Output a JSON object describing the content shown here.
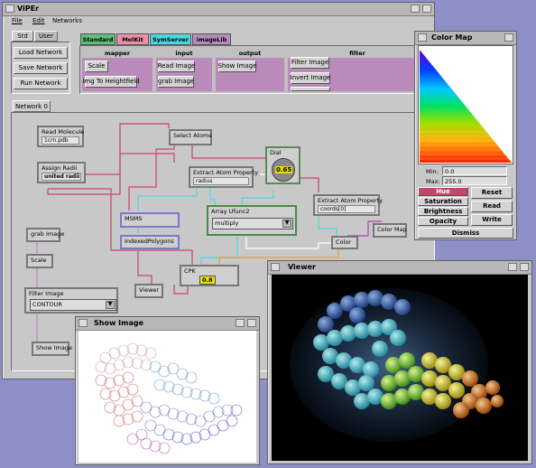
{
  "app": {
    "title": "ViPEr",
    "menu": [
      "File",
      "Edit",
      "Networks"
    ],
    "tabs": [
      "Std",
      "User"
    ],
    "buttons": [
      "Load Network",
      "Save Network",
      "Run Network"
    ],
    "libraries": [
      "Standard",
      "MolKit",
      "SymServer",
      "imageLib"
    ],
    "categories": [
      "mapper",
      "input",
      "output",
      "filter"
    ],
    "category_buttons": {
      "mapper": [
        "Scale",
        "Img To Heightfield"
      ],
      "input": [
        "Read Image",
        "grab Image"
      ],
      "output": [
        "Show Image"
      ],
      "filter": [
        "Filter Image",
        "Invert Image"
      ]
    },
    "network_tab": "Network 0"
  },
  "network": {
    "read_molecule": {
      "label": "Read Molecule",
      "value": "1crn.pdb"
    },
    "assign_radii": {
      "label": "Assign Radii",
      "value": "united radii"
    },
    "select_atoms": {
      "label": "Select Atoms"
    },
    "extract_radius": {
      "label": "Extract Atom Property",
      "value": "radius"
    },
    "dial": {
      "label": "Dial",
      "value": "0.65"
    },
    "extract_coords": {
      "label": "Extract Atom Property",
      "value": "coords[0]"
    },
    "msms": {
      "label": "MSMS"
    },
    "array_ufunc": {
      "label": "Array Ufunc2",
      "value": "multiply"
    },
    "indexed_polygons": {
      "label": "IndexedPolygons"
    },
    "color": {
      "label": "Color"
    },
    "color_map": {
      "label": "Color Map"
    },
    "grab_image": {
      "label": "grab Image"
    },
    "scale": {
      "label": "Scale"
    },
    "filter_image": {
      "label": "Filter Image",
      "value": "CONTOUR"
    },
    "viewer": {
      "label": "Viewer"
    },
    "cpk": {
      "label": "CPK",
      "value": "0.8"
    },
    "show_image": {
      "label": "Show Image"
    }
  },
  "colormap": {
    "title": "Color Map",
    "min_label": "Min:",
    "min_value": "0.0",
    "max_label": "Max:",
    "max_value": "255.0",
    "props": [
      "Hue",
      "Saturation",
      "Brightness",
      "Opacity"
    ],
    "actions": [
      "Reset",
      "Read",
      "Write"
    ],
    "dismiss": "Dismiss"
  },
  "show_image_window": {
    "title": "Show Image"
  },
  "viewer_window": {
    "title": "Viewer"
  },
  "colors": {
    "desktop": "#8f8fc8",
    "lib_standard": "#5fbf7a",
    "lib_molkit": "#e890a8",
    "lib_symserver": "#4ad8e0",
    "lib_imagelib": "#b98aba",
    "hue_selected": "#c8446a"
  }
}
